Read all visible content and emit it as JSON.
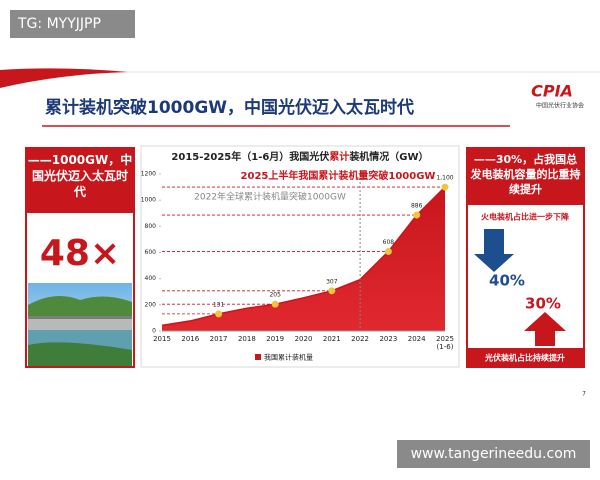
{
  "watermark_top": "TG: MYYJJPP",
  "watermark_bottom": "www.tangerineedu.com",
  "slide": {
    "title": "累计装机突破1000GW，中国光伏迈入太瓦时代",
    "logo": "CPIA",
    "logo_subtitle": "中国光伏行业协会",
    "page_number": "7",
    "left_panel": {
      "heading": "——1000GW，中国光伏迈入太瓦时代",
      "figure": "48×"
    },
    "right_panel": {
      "heading": "——30%，占我国总发电装机容量的比重持续提升",
      "thermal_label": "火电装机占比进一步下降",
      "thermal_share": "40%",
      "pv_share": "30%",
      "pv_label": "光伏装机占比持续提升"
    }
  },
  "chart_data": {
    "type": "area",
    "title_parts": [
      "2015-2025年（1-6月）我国光伏",
      "累计",
      "装机情况（GW）"
    ],
    "annotations": [
      "2025上半年我国累计装机量突破1000GW",
      "2022年全球累计装机量突破1000GW"
    ],
    "categories": [
      "2015",
      "2016",
      "2017",
      "2018",
      "2019",
      "2020",
      "2021",
      "2022",
      "2023",
      "2024",
      "2025\n(1-6)"
    ],
    "series": [
      {
        "name": "我国累计装机量",
        "color": "#c8161d",
        "values": [
          43,
          77,
          131,
          174,
          205,
          253,
          307,
          393,
          608,
          886,
          1100
        ],
        "value_labels": [
          null,
          null,
          "131",
          null,
          "205",
          null,
          "307",
          null,
          "608",
          "886",
          "1,100"
        ]
      }
    ],
    "marker_color": "#f2c53d",
    "ylim": [
      0,
      1200
    ],
    "yticks": [
      0,
      200,
      400,
      600,
      800,
      1000,
      1200
    ]
  }
}
